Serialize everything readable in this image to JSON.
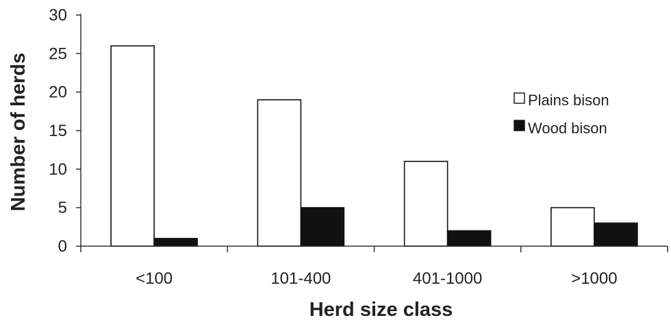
{
  "chart_data": {
    "type": "bar",
    "title": "",
    "xlabel": "Herd size class",
    "ylabel": "Number of herds",
    "categories": [
      "<100",
      "101-400",
      "401-1000",
      ">1000"
    ],
    "ylim": [
      0,
      30
    ],
    "yticks": [
      0,
      5,
      10,
      15,
      20,
      25,
      30
    ],
    "grid": false,
    "legend_position": "right",
    "series": [
      {
        "name": "Plains bison",
        "values": [
          26,
          19,
          11,
          5
        ],
        "color": "#ffffff"
      },
      {
        "name": "Wood bison",
        "values": [
          1,
          5,
          2,
          3
        ],
        "color": "#111111"
      }
    ]
  }
}
